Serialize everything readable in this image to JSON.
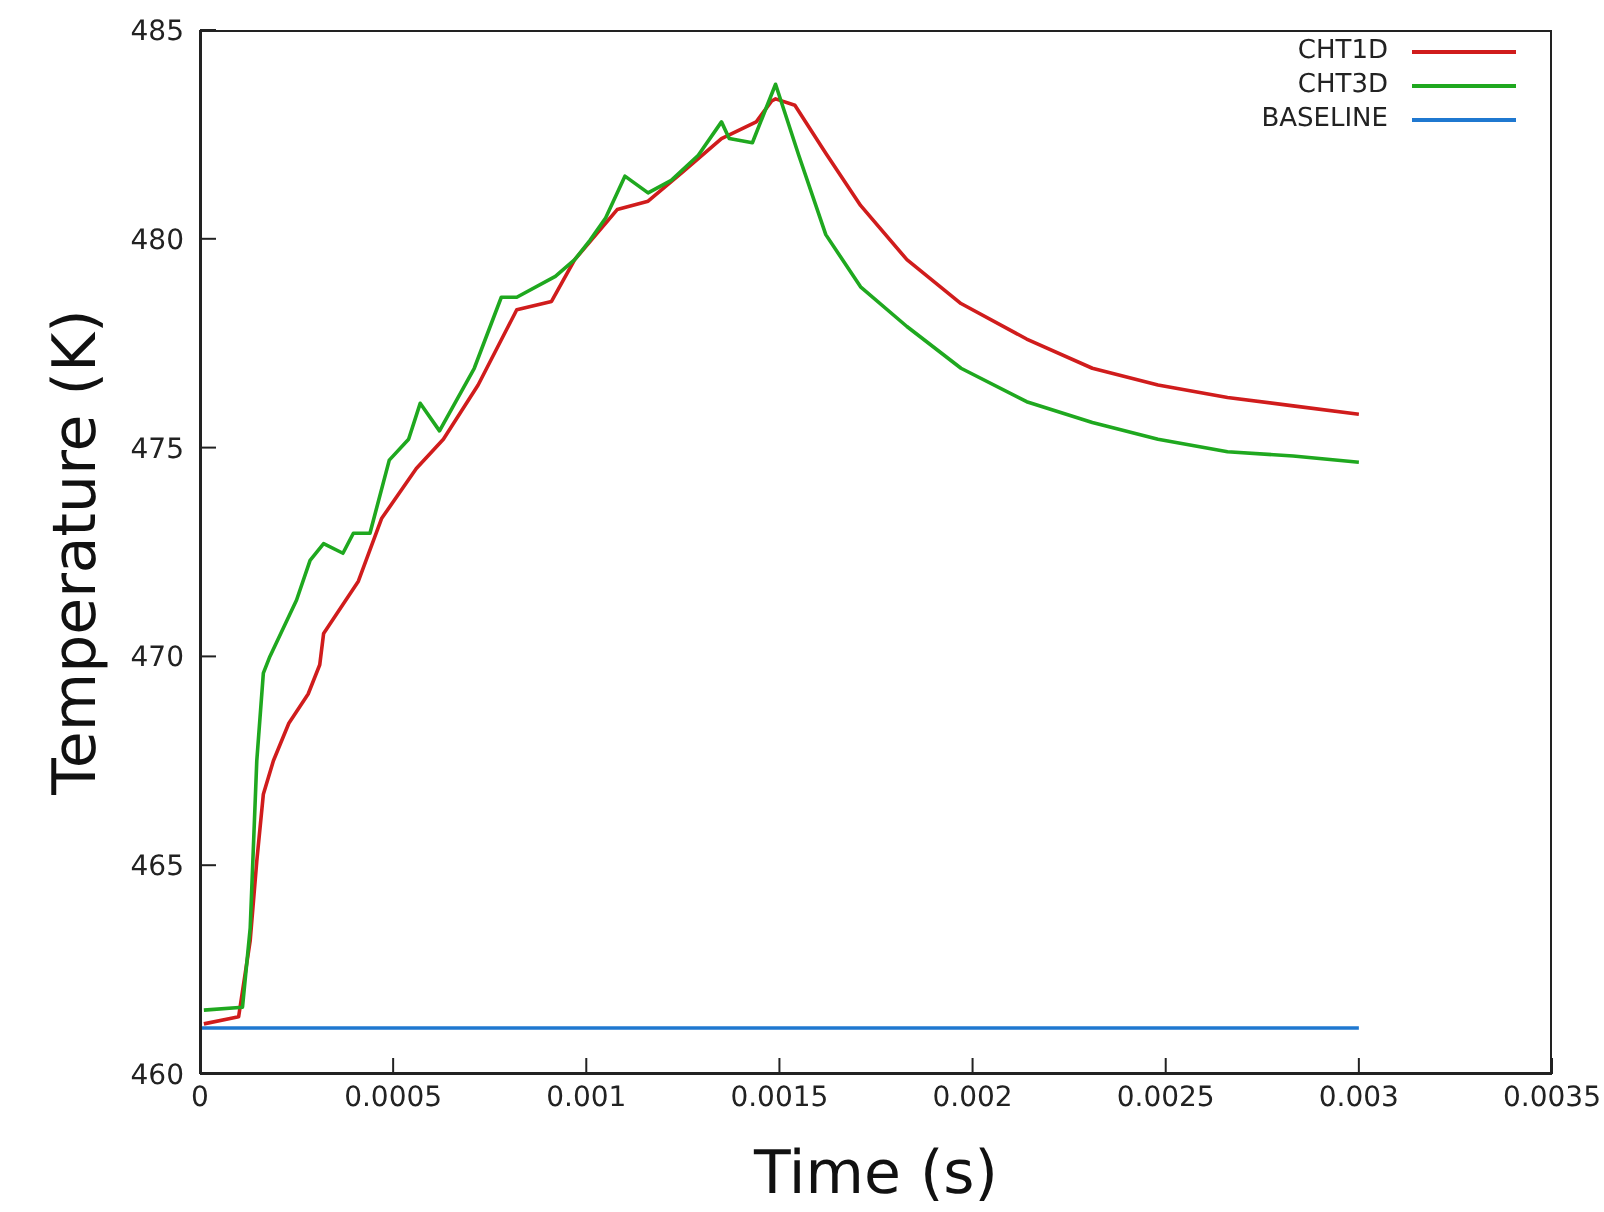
{
  "chart_data": {
    "type": "line",
    "xlabel": "Time (s)",
    "ylabel": "Temperature (K)",
    "xlim": [
      0,
      0.0035
    ],
    "xticks": [
      0,
      0.0005,
      0.001,
      0.0015,
      0.002,
      0.0025,
      0.003,
      0.0035
    ],
    "ylim": [
      460,
      485
    ],
    "yticks": [
      460,
      465,
      470,
      475,
      480,
      485
    ],
    "grid": false,
    "legend": "top right",
    "marker": "none",
    "line_style": "solid",
    "series": [
      {
        "name": "CHT1D",
        "color": "#d01c1c",
        "x": [
          1e-05,
          0.0001,
          0.00013,
          0.000147,
          0.000164,
          0.00019,
          0.00023,
          0.00028,
          0.00031,
          0.00032,
          0.00041,
          0.00047,
          0.00056,
          0.00063,
          0.00072,
          0.00082,
          0.00091,
          0.00097,
          0.00108,
          0.00116,
          0.00125,
          0.00135,
          0.00144,
          0.00148,
          0.00149,
          0.00154,
          0.00162,
          0.00171,
          0.00183,
          0.00197,
          0.00214,
          0.00231,
          0.00248,
          0.00266,
          0.00283,
          0.003
        ],
        "values": [
          461.2,
          461.37,
          463.2,
          465.1,
          466.7,
          467.5,
          468.4,
          469.1,
          469.8,
          470.55,
          471.8,
          473.3,
          474.5,
          475.2,
          476.5,
          478.3,
          478.5,
          479.5,
          480.7,
          480.9,
          481.6,
          482.4,
          482.8,
          483.3,
          483.35,
          483.2,
          482.05,
          480.8,
          479.5,
          478.45,
          477.6,
          476.9,
          476.5,
          476.2,
          476.0,
          475.8
        ]
      },
      {
        "name": "CHT3D",
        "color": "#1fa81f",
        "x": [
          1e-05,
          0.00011,
          0.00013,
          0.000147,
          0.000164,
          0.000181,
          0.00025,
          0.000285,
          0.00032,
          0.00037,
          0.000397,
          0.00044,
          0.00049,
          0.00054,
          0.00057,
          0.00062,
          0.00071,
          0.00078,
          0.00082,
          0.00092,
          0.00097,
          0.00101,
          0.00105,
          0.0011,
          0.00116,
          0.00122,
          0.00129,
          0.00135,
          0.00137,
          0.00143,
          0.00149,
          0.00155,
          0.00162,
          0.00171,
          0.00183,
          0.00197,
          0.00214,
          0.00231,
          0.00248,
          0.00266,
          0.00283,
          0.003
        ],
        "values": [
          461.53,
          461.6,
          463.5,
          467.5,
          469.6,
          470.0,
          471.35,
          472.3,
          472.7,
          472.47,
          472.95,
          472.95,
          474.7,
          475.2,
          476.06,
          475.4,
          476.9,
          478.6,
          478.6,
          479.1,
          479.5,
          479.97,
          480.5,
          481.5,
          481.1,
          481.4,
          482.0,
          482.8,
          482.4,
          482.3,
          483.7,
          482.0,
          480.1,
          478.85,
          477.9,
          476.9,
          476.1,
          475.6,
          475.2,
          474.9,
          474.8,
          474.65
        ]
      },
      {
        "name": "BASELINE",
        "color": "#1f78d0",
        "x": [
          0,
          0.003
        ],
        "values": [
          461.1,
          461.1
        ]
      }
    ]
  }
}
